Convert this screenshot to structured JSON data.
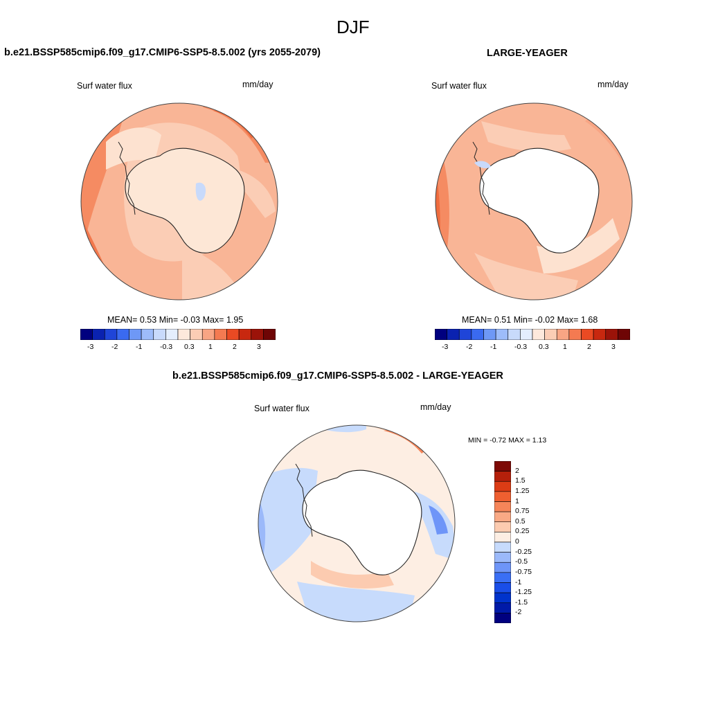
{
  "page": {
    "title": "DJF"
  },
  "colors": {
    "land": "#fde7d6",
    "coast": "#222222",
    "abs_scale": [
      "#00007f",
      "#0a22b0",
      "#1f45d8",
      "#3a6af0",
      "#6e98f6",
      "#9dbcfa",
      "#c8dafb",
      "#e4eefd",
      "#fde9dc",
      "#fbcdb5",
      "#f8a584",
      "#f47a51",
      "#ea4a23",
      "#c8280f",
      "#9b1309",
      "#6e0505"
    ],
    "diff_scale": [
      "#00007f",
      "#001aa8",
      "#0033cc",
      "#1a4ee8",
      "#3a6ff5",
      "#6e95f8",
      "#9bb9fa",
      "#c7dbfc",
      "#fdeee3",
      "#fccbb0",
      "#f9a985",
      "#f68559",
      "#ef5f30",
      "#dc3c15",
      "#b5200b",
      "#7e0a06"
    ]
  },
  "panels": {
    "model": {
      "title": "b.e21.BSSP585cmip6.f09_g17.CMIP6-SSP5-8.5.002 (yrs 2055-2079)",
      "left_label": "Surf water flux",
      "units": "mm/day",
      "stats": "MEAN=   0.53  Min=  -0.03  Max=   1.95",
      "colorbar_ticks": [
        "-3",
        "-2",
        "-1",
        "-0.3",
        "0.3",
        "1",
        "2",
        "3"
      ]
    },
    "obs": {
      "title": "LARGE-YEAGER",
      "left_label": "Surf water flux",
      "units": "mm/day",
      "stats": "MEAN=   0.51  Min=  -0.02  Max=   1.68",
      "colorbar_ticks": [
        "-3",
        "-2",
        "-1",
        "-0.3",
        "0.3",
        "1",
        "2",
        "3"
      ]
    },
    "diff": {
      "title": "b.e21.BSSP585cmip6.f09_g17.CMIP6-SSP5-8.5.002 - LARGE-YEAGER",
      "left_label": "Surf water flux",
      "units": "mm/day",
      "stats": "MIN =  -0.72 MAX =   1.13",
      "colorbar_ticks": [
        "2",
        "1.5",
        "1.25",
        "1",
        "0.75",
        "0.5",
        "0.25",
        "0",
        "-0.25",
        "-0.5",
        "-0.75",
        "-1",
        "-1.25",
        "-1.5",
        "-2"
      ]
    }
  }
}
